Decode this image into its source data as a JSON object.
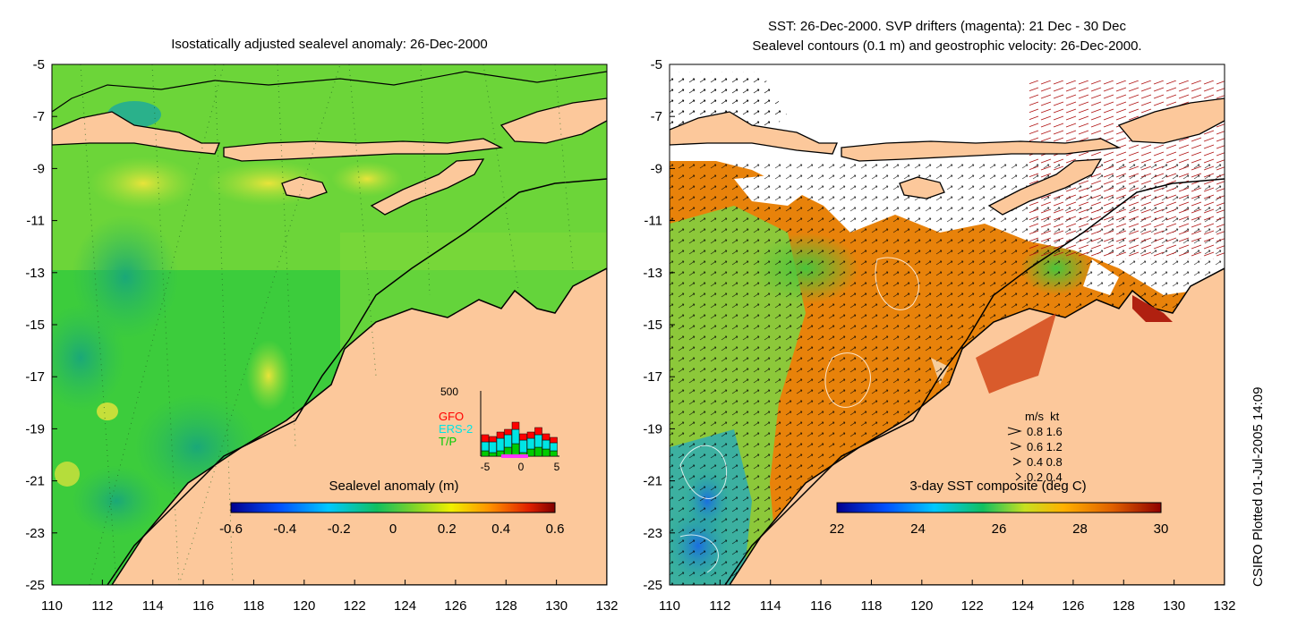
{
  "left_map": {
    "title": "Isostatically adjusted sealevel anomaly: 26-Dec-2000",
    "x_ticks": [
      "110",
      "112",
      "114",
      "116",
      "118",
      "120",
      "122",
      "124",
      "126",
      "128",
      "130",
      "132"
    ],
    "y_ticks": [
      "-5",
      "-7",
      "-9",
      "-11",
      "-13",
      "-15",
      "-17",
      "-19",
      "-21",
      "-23",
      "-25"
    ],
    "colorbar": {
      "label": "Sealevel anomaly (m)",
      "ticks": [
        "-0.6",
        "-0.4",
        "-0.2",
        "0",
        "0.2",
        "0.4",
        "0.6"
      ]
    },
    "inset": {
      "y_label": "500",
      "x_ticks": [
        "-5",
        "0",
        "5"
      ],
      "legend": [
        {
          "name": "GFO",
          "color": "#ff0000"
        },
        {
          "name": "ERS-2",
          "color": "#00e5e5"
        },
        {
          "name": "T/P",
          "color": "#00cc00"
        }
      ]
    }
  },
  "right_map": {
    "title_line1": "SST: 26-Dec-2000. SVP drifters (magenta): 21 Dec - 30 Dec",
    "title_line2": "Sealevel contours (0.1 m) and geostrophic velocity: 26-Dec-2000.",
    "x_ticks": [
      "110",
      "112",
      "114",
      "116",
      "118",
      "120",
      "122",
      "124",
      "126",
      "128",
      "130",
      "132"
    ],
    "y_ticks": [
      "-5",
      "-7",
      "-9",
      "-11",
      "-13",
      "-15",
      "-17",
      "-19",
      "-21",
      "-23",
      "-25"
    ],
    "speed_legend": {
      "header": "m/s  kt",
      "rows": [
        "0.8  1.6",
        "0.6  1.2",
        "0.4  0.8",
        "0.2  0.4"
      ]
    },
    "colorbar": {
      "label": "3-day SST composite (deg C)",
      "ticks": [
        "22",
        "24",
        "26",
        "28",
        "30"
      ]
    }
  },
  "credit": "CSIRO Plotted 01-Jul-2005 14:09",
  "colors": {
    "land": "#fcc89b",
    "sea_green": "#3ccc3c",
    "sst_orange": "#e8820a",
    "cloud": "#ffffff"
  }
}
